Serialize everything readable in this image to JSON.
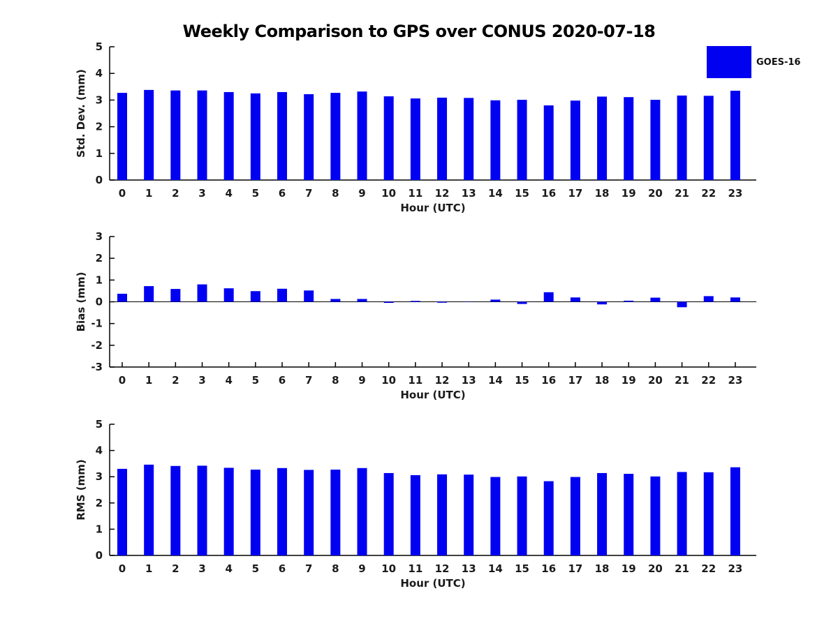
{
  "title": "Weekly Comparison to GPS over CONUS 2020-07-18",
  "legend": {
    "label": "GOES-16",
    "color": "#0101f2",
    "position": "top-right"
  },
  "bar_color": "#0101f2",
  "chart_data": [
    {
      "type": "bar",
      "name": "std-dev",
      "series_name": "GOES-16",
      "ylabel": "Std. Dev. (mm)",
      "xlabel": "Hour (UTC)",
      "categories": [
        0,
        1,
        2,
        3,
        4,
        5,
        6,
        7,
        8,
        9,
        10,
        11,
        12,
        13,
        14,
        15,
        16,
        17,
        18,
        19,
        20,
        21,
        22,
        23
      ],
      "values": [
        3.27,
        3.38,
        3.36,
        3.36,
        3.3,
        3.25,
        3.3,
        3.22,
        3.27,
        3.32,
        3.14,
        3.06,
        3.09,
        3.08,
        2.99,
        3.01,
        2.8,
        2.98,
        3.13,
        3.11,
        3.01,
        3.17,
        3.16,
        3.35
      ],
      "ylim": [
        0,
        5
      ],
      "yticks": [
        0,
        1,
        2,
        3,
        4,
        5
      ],
      "grid": false
    },
    {
      "type": "bar",
      "name": "bias",
      "series_name": "GOES-16",
      "ylabel": "Bias (mm)",
      "xlabel": "Hour (UTC)",
      "categories": [
        0,
        1,
        2,
        3,
        4,
        5,
        6,
        7,
        8,
        9,
        10,
        11,
        12,
        13,
        14,
        15,
        16,
        17,
        18,
        19,
        20,
        21,
        22,
        23
      ],
      "values": [
        0.37,
        0.72,
        0.59,
        0.8,
        0.62,
        0.49,
        0.6,
        0.52,
        0.13,
        0.13,
        -0.05,
        0.04,
        -0.04,
        0.01,
        0.1,
        -0.1,
        0.44,
        0.2,
        -0.12,
        0.05,
        0.19,
        -0.25,
        0.26,
        0.2
      ],
      "ylim": [
        -3,
        3
      ],
      "yticks": [
        3,
        2,
        1,
        0,
        -1,
        -2,
        -3
      ],
      "zero_line": true,
      "grid": false
    },
    {
      "type": "bar",
      "name": "rms",
      "series_name": "GOES-16",
      "ylabel": "RMS (mm)",
      "xlabel": "Hour (UTC)",
      "categories": [
        0,
        1,
        2,
        3,
        4,
        5,
        6,
        7,
        8,
        9,
        10,
        11,
        12,
        13,
        14,
        15,
        16,
        17,
        18,
        19,
        20,
        21,
        22,
        23
      ],
      "values": [
        3.3,
        3.46,
        3.41,
        3.42,
        3.34,
        3.27,
        3.33,
        3.26,
        3.27,
        3.33,
        3.14,
        3.06,
        3.09,
        3.08,
        2.99,
        3.01,
        2.83,
        2.99,
        3.14,
        3.11,
        3.01,
        3.18,
        3.17,
        3.36
      ],
      "ylim": [
        0,
        5
      ],
      "yticks": [
        0,
        1,
        2,
        3,
        4,
        5
      ],
      "grid": false
    }
  ]
}
